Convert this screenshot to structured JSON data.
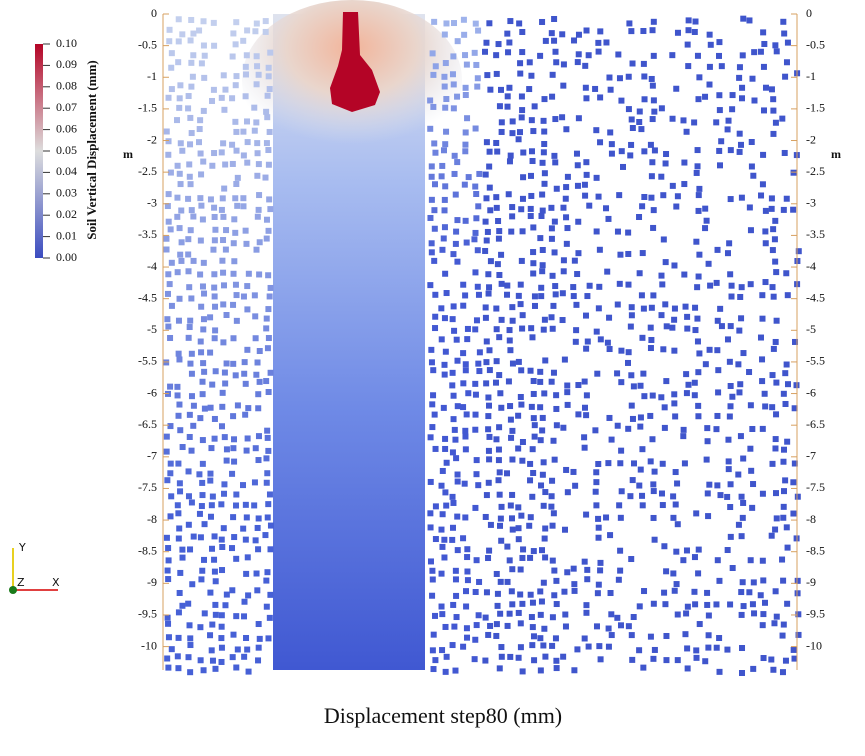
{
  "chart_data": {
    "type": "field",
    "title": "Displacement step80 (mm)",
    "ylabel": "m",
    "ylim": [
      -10.37,
      0
    ],
    "yticks": [
      0,
      -0.5,
      -1,
      -1.5,
      -2,
      -2.5,
      -3,
      -3.5,
      -4,
      -4.5,
      -5,
      -5.5,
      -6,
      -6.5,
      -7,
      -7.5,
      -8,
      -8.5,
      -9,
      -9.5,
      -10
    ],
    "colorbar": {
      "title": "Soil Vertical Displacement (mm)",
      "lim": [
        0,
        0.1
      ],
      "ticks": [
        {
          "value": 0.1,
          "label": "0.10"
        },
        {
          "value": 0.09,
          "label": "0.09"
        },
        {
          "value": 0.08,
          "label": "0.08"
        },
        {
          "value": 0.07,
          "label": "0.07"
        },
        {
          "value": 0.06,
          "label": "0.06"
        },
        {
          "value": 0.05,
          "label": "0.05"
        },
        {
          "value": 0.04,
          "label": "0.04"
        },
        {
          "value": 0.03,
          "label": "0.03"
        },
        {
          "value": 0.02,
          "label": "0.02"
        },
        {
          "value": 0.01,
          "label": "0.01"
        },
        {
          "value": 0,
          "label": "0.00"
        }
      ],
      "colormap": [
        "#3b4cc0",
        "#dddddd",
        "#b40426"
      ]
    }
  },
  "orientation_axes": {
    "y": "Y",
    "z": "Z",
    "x": "X"
  }
}
